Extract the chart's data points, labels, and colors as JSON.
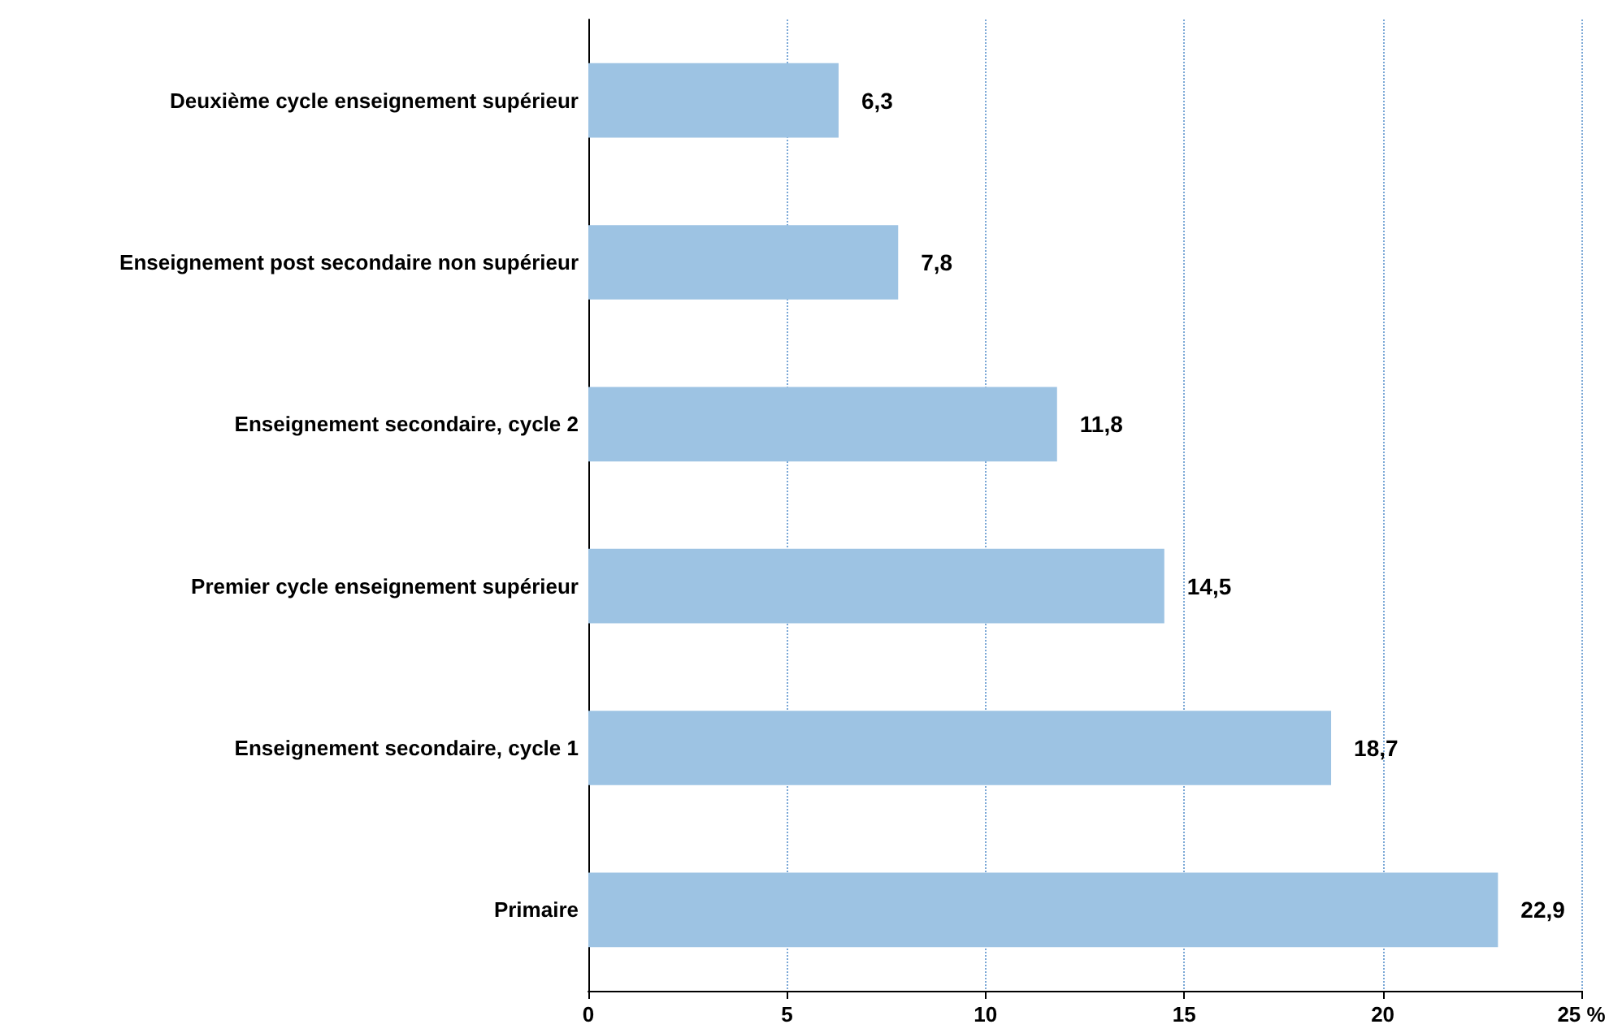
{
  "chart_data": {
    "type": "bar",
    "orientation": "horizontal",
    "categories": [
      "Deuxième cycle enseignement supérieur",
      "Enseignement post secondaire non supérieur",
      "Enseignement secondaire, cycle 2",
      "Premier cycle enseignement supérieur",
      "Enseignement secondaire, cycle 1",
      "Primaire"
    ],
    "values": [
      6.3,
      7.8,
      11.8,
      14.5,
      18.7,
      22.9
    ],
    "value_labels": [
      "6,3",
      "7,8",
      "11,8",
      "14,5",
      "18,7",
      "22,9"
    ],
    "color": "#9dc3e3",
    "xlim": [
      0,
      25
    ],
    "xticks": [
      0,
      5,
      10,
      15,
      20,
      {
        "value": 25,
        "label": "25 %"
      }
    ],
    "grid": "x"
  }
}
